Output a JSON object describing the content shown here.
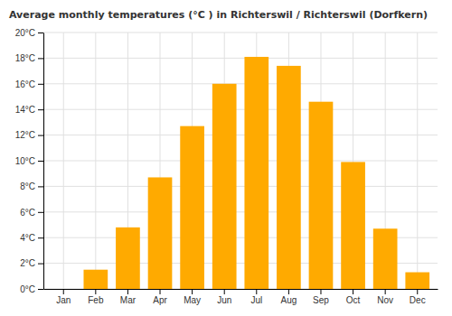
{
  "chart_data": {
    "type": "bar",
    "title": "Average monthly temperatures (°C ) in Richterswil / Richterswil (Dorfkern)",
    "categories": [
      "Jan",
      "Feb",
      "Mar",
      "Apr",
      "May",
      "Jun",
      "Jul",
      "Aug",
      "Sep",
      "Oct",
      "Nov",
      "Dec"
    ],
    "values": [
      0,
      1.5,
      4.8,
      8.7,
      12.7,
      16.0,
      18.1,
      17.4,
      14.6,
      9.9,
      4.7,
      1.3
    ],
    "color": "#FFAA00",
    "ylim": [
      0,
      20
    ],
    "yticks": [
      {
        "value": 0,
        "label": "0°C"
      },
      {
        "value": 2,
        "label": "2°C"
      },
      {
        "value": 4,
        "label": "4°C"
      },
      {
        "value": 6,
        "label": "6°C"
      },
      {
        "value": 8,
        "label": "8°C"
      },
      {
        "value": 10,
        "label": "10°C"
      },
      {
        "value": 12,
        "label": "12°C"
      },
      {
        "value": 14,
        "label": "14°C"
      },
      {
        "value": 16,
        "label": "16°C"
      },
      {
        "value": 18,
        "label": "18°C"
      },
      {
        "value": 20,
        "label": "20°C"
      }
    ],
    "grid": true
  }
}
